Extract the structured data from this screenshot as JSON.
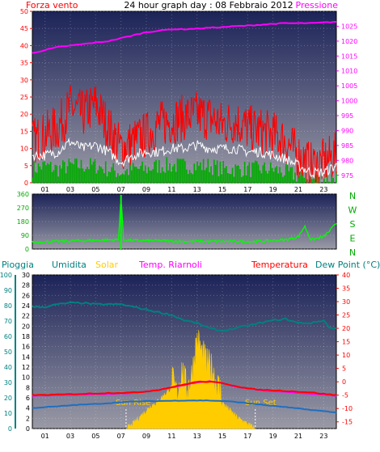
{
  "header": {
    "left_label": "Forza vento",
    "title": "24 hour graph day : 08 Febbraio 2012",
    "right_label": "Pressione"
  },
  "colors": {
    "panel_top": "#1c2358",
    "panel_bottom": "#9a9aa6",
    "wind_gust": "#ff0000",
    "wind_avg": "#ffffff",
    "wind_dir_bars": "#00aa00",
    "pressure": "#ff00ff",
    "direction": "#00ff00",
    "humidity": "#008080",
    "solar": "#ffcc00",
    "temp_indoor": "#ff00ff",
    "temperature": "#ff0000",
    "dewpoint": "#1f6fbf",
    "rain": "#008080"
  },
  "chart_data": [
    {
      "type": "line",
      "name": "wind-pressure",
      "x_ticks": [
        "01",
        "03",
        "05",
        "07",
        "09",
        "11",
        "13",
        "15",
        "17",
        "19",
        "21",
        "23"
      ],
      "left_axis": {
        "label": "Forza vento",
        "ticks": [
          0,
          5,
          10,
          15,
          20,
          25,
          30,
          35,
          40,
          45,
          50
        ],
        "range": [
          0,
          50
        ]
      },
      "right_axis": {
        "label": "Pressione",
        "ticks": [
          975,
          980,
          985,
          990,
          995,
          1000,
          1005,
          1010,
          1015,
          1020,
          1025
        ],
        "range": [
          972.5,
          1030
        ]
      },
      "series": [
        {
          "name": "Pressione",
          "axis": "right",
          "x": [
            0,
            1,
            2,
            3,
            4,
            5,
            6,
            7,
            8,
            9,
            10,
            11,
            12,
            13,
            14,
            15,
            16,
            17,
            18,
            19,
            20,
            21,
            22,
            23,
            24
          ],
          "y": [
            1016,
            1017,
            1018,
            1018.5,
            1019,
            1019.5,
            1020,
            1021,
            1022,
            1023,
            1023.5,
            1024,
            1024,
            1024.2,
            1024.5,
            1024.7,
            1025,
            1025.2,
            1025.5,
            1025.8,
            1026,
            1026,
            1026,
            1026.2,
            1026.5
          ]
        },
        {
          "name": "gust",
          "axis": "left",
          "x": [
            0,
            1,
            2,
            3,
            4,
            5,
            6,
            7,
            8,
            9,
            10,
            11,
            12,
            13,
            14,
            15,
            16,
            17,
            18,
            19,
            20,
            21,
            22,
            23,
            24
          ],
          "y": [
            12,
            14,
            16,
            22,
            20,
            23,
            16,
            10,
            12,
            14,
            17,
            18,
            19,
            20,
            19,
            17,
            18,
            16,
            15,
            14,
            12,
            8,
            5,
            6,
            8
          ]
        },
        {
          "name": "average",
          "axis": "left",
          "x": [
            0,
            1,
            2,
            3,
            4,
            5,
            6,
            7,
            8,
            9,
            10,
            11,
            12,
            13,
            14,
            15,
            16,
            17,
            18,
            19,
            20,
            21,
            22,
            23,
            24
          ],
          "y": [
            8,
            8,
            9,
            12,
            10,
            11,
            9,
            6,
            8,
            9,
            9,
            10,
            10,
            11,
            10,
            10,
            10,
            9,
            9,
            8,
            7,
            5,
            3,
            3,
            5
          ]
        },
        {
          "name": "direction-bars",
          "axis": "left",
          "x": [
            0,
            1,
            2,
            3,
            4,
            5,
            6,
            7,
            8,
            9,
            10,
            11,
            12,
            13,
            14,
            15,
            16,
            17,
            18,
            19,
            20,
            21,
            22,
            23,
            24
          ],
          "y": [
            4,
            5,
            4,
            5,
            5,
            5,
            4,
            3,
            4,
            4,
            5,
            5,
            5,
            5,
            5,
            4,
            4,
            4,
            4,
            4,
            3,
            2,
            1,
            1,
            2
          ]
        }
      ]
    },
    {
      "type": "line",
      "name": "wind-direction",
      "left_axis": {
        "ticks": [
          0,
          90,
          180,
          270,
          360
        ],
        "range": [
          0,
          360
        ]
      },
      "right_labels": [
        "N",
        "W",
        "S",
        "E",
        "N"
      ],
      "series": [
        {
          "name": "direction",
          "x": [
            0,
            2,
            4,
            6,
            6.8,
            7,
            7.2,
            8,
            10,
            12,
            14,
            16,
            18,
            19,
            20,
            21,
            21.5,
            22,
            22.5,
            23,
            23.6,
            24
          ],
          "y": [
            45,
            50,
            55,
            60,
            60,
            350,
            60,
            55,
            55,
            50,
            50,
            50,
            50,
            55,
            60,
            80,
            150,
            60,
            70,
            80,
            130,
            170
          ]
        }
      ]
    },
    {
      "type": "line",
      "name": "temperature-humidity-solar",
      "labels": [
        "Pioggia",
        "Umidita",
        "Solar",
        "Temp. Riarnoli",
        "Temperatura",
        "Dew Point (°C)"
      ],
      "rain_axis": {
        "ticks": [
          0,
          10,
          20,
          30,
          40,
          50,
          60,
          70,
          80,
          90,
          100
        ],
        "range": [
          0,
          100
        ]
      },
      "humidity_axis": {
        "ticks": [
          0,
          2,
          4,
          6,
          8,
          10,
          12,
          14,
          16,
          18,
          20,
          22,
          24,
          26,
          28,
          30
        ],
        "range": [
          0,
          30
        ]
      },
      "temp_axis": {
        "ticks": [
          -15,
          -10,
          -5,
          0,
          5,
          10,
          15,
          20,
          25,
          30,
          35,
          40
        ],
        "range": [
          -17.5,
          40
        ]
      },
      "annotations": [
        "Sun Rise",
        "Sun Set"
      ],
      "sunrise_hour": 7.4,
      "sunset_hour": 17.6,
      "series": [
        {
          "name": "Umidita",
          "axis": "temp",
          "x": [
            0,
            1,
            2,
            3,
            4,
            5,
            6,
            7,
            8,
            9,
            10,
            11,
            12,
            13,
            14,
            15,
            16,
            17,
            18,
            19,
            20,
            21,
            22,
            23,
            23.5,
            24
          ],
          "y": [
            28,
            28,
            29,
            29.5,
            29.5,
            29,
            29,
            29,
            28,
            27,
            26,
            25,
            23,
            22,
            20,
            19,
            20,
            21,
            22,
            23,
            23.5,
            22,
            22,
            23,
            20,
            20
          ]
        },
        {
          "name": "Temperatura",
          "axis": "temp",
          "x": [
            0,
            2,
            4,
            6,
            8,
            9,
            10,
            11,
            12,
            13,
            14,
            15,
            16,
            17,
            18,
            19,
            20,
            22,
            24
          ],
          "y": [
            -5,
            -4.8,
            -4.5,
            -4.2,
            -4,
            -3.6,
            -3,
            -2,
            -1,
            0,
            0,
            -0.5,
            -1.5,
            -2.5,
            -3,
            -3.2,
            -3.4,
            -4,
            -5
          ]
        },
        {
          "name": "Temp. Riarnoli",
          "axis": "temp",
          "x": [
            0,
            4,
            8,
            10,
            12,
            13,
            14,
            15,
            16,
            18,
            20,
            24
          ],
          "y": [
            -5.2,
            -4.8,
            -4.2,
            -3,
            -1.2,
            -0.2,
            0.2,
            -0.5,
            -1.8,
            -3.2,
            -3.8,
            -5.2
          ]
        },
        {
          "name": "Dew Point (°C)",
          "axis": "temp",
          "x": [
            0,
            1,
            2,
            3,
            4,
            5,
            6,
            7,
            8,
            9,
            10,
            11,
            12,
            13,
            14,
            15,
            16,
            17,
            18,
            19,
            20,
            21,
            22,
            23,
            24
          ],
          "y": [
            -9.8,
            -9.5,
            -9.2,
            -8.8,
            -8.5,
            -8.3,
            -8,
            -7.6,
            -7.4,
            -7.3,
            -7.2,
            -7.1,
            -7,
            -7,
            -7,
            -7.2,
            -7.5,
            -8,
            -8.5,
            -9,
            -9.5,
            -10,
            -10.5,
            -11,
            -11.5
          ]
        },
        {
          "name": "Solar",
          "axis": "humidity",
          "x": [
            7.4,
            7.8,
            8.2,
            8.6,
            9,
            9.4,
            9.8,
            10.2,
            10.6,
            11,
            11.4,
            11.8,
            12.2,
            12.6,
            13,
            13.4,
            13.8,
            14.2,
            14.6,
            15,
            15.4,
            15.8,
            16.2,
            16.6,
            17,
            17.6
          ],
          "y": [
            0,
            0.5,
            1.5,
            2.5,
            3.5,
            4.5,
            5,
            6,
            7,
            8,
            5,
            10,
            6,
            9,
            16,
            13,
            11,
            10,
            7,
            5,
            4,
            3,
            2,
            1.5,
            0.8,
            0
          ]
        }
      ]
    }
  ]
}
